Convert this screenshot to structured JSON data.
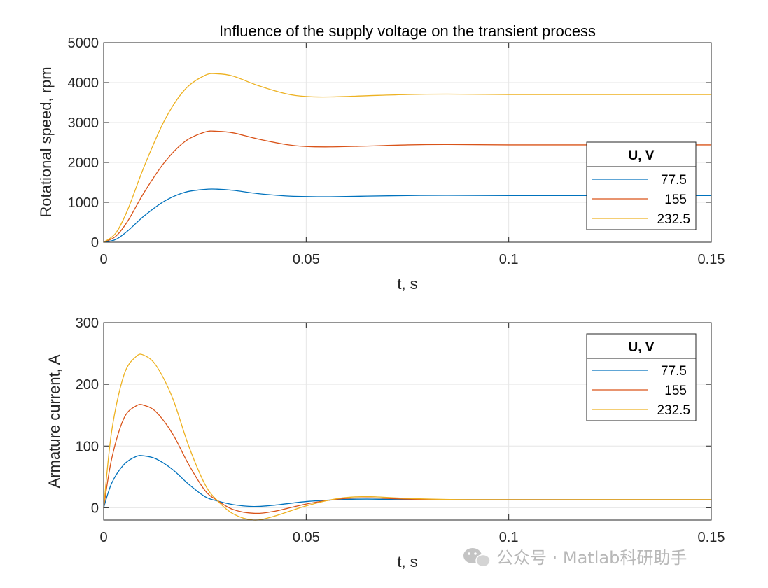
{
  "figure_title": "Influence of the supply voltage on the transient process",
  "watermark": "公众号 · Matlab科研助手",
  "chart_data": [
    {
      "type": "line",
      "title": "Influence of the supply voltage on the transient process",
      "xlabel": "t, s",
      "ylabel": "Rotational speed, rpm",
      "xlim": [
        0,
        0.15
      ],
      "ylim": [
        0,
        5000
      ],
      "xticks": [
        0,
        0.05,
        0.1,
        0.15
      ],
      "xtick_labels": [
        "0",
        "0.05",
        "0.1",
        "0.15"
      ],
      "yticks": [
        0,
        1000,
        2000,
        3000,
        4000,
        5000
      ],
      "ytick_labels": [
        "0",
        "1000",
        "2000",
        "3000",
        "4000",
        "5000"
      ],
      "grid": true,
      "legend": {
        "title": "U, V",
        "location": "right",
        "entries": [
          "77.5",
          "155",
          "232.5"
        ]
      },
      "series": [
        {
          "name": "77.5",
          "color": "#0072BD",
          "x": [
            0,
            0.003,
            0.006,
            0.01,
            0.015,
            0.02,
            0.025,
            0.028,
            0.032,
            0.038,
            0.045,
            0.05,
            0.056,
            0.065,
            0.075,
            0.085,
            0.1,
            0.12,
            0.15
          ],
          "y": [
            0,
            70,
            290,
            660,
            1030,
            1250,
            1325,
            1330,
            1300,
            1220,
            1160,
            1145,
            1140,
            1155,
            1170,
            1175,
            1170,
            1170,
            1170
          ]
        },
        {
          "name": "155",
          "color": "#D95319",
          "x": [
            0,
            0.003,
            0.006,
            0.01,
            0.015,
            0.02,
            0.025,
            0.028,
            0.032,
            0.038,
            0.045,
            0.05,
            0.056,
            0.065,
            0.075,
            0.085,
            0.1,
            0.12,
            0.15
          ],
          "y": [
            0,
            150,
            540,
            1250,
            2000,
            2520,
            2760,
            2780,
            2740,
            2590,
            2450,
            2400,
            2390,
            2410,
            2440,
            2450,
            2440,
            2440,
            2440
          ]
        },
        {
          "name": "232.5",
          "color": "#EDB120",
          "x": [
            0,
            0.003,
            0.006,
            0.01,
            0.015,
            0.02,
            0.025,
            0.028,
            0.032,
            0.038,
            0.045,
            0.05,
            0.056,
            0.065,
            0.075,
            0.085,
            0.1,
            0.12,
            0.15
          ],
          "y": [
            0,
            230,
            830,
            1900,
            3050,
            3820,
            4180,
            4220,
            4160,
            3930,
            3720,
            3650,
            3640,
            3670,
            3700,
            3710,
            3700,
            3700,
            3700
          ]
        }
      ]
    },
    {
      "type": "line",
      "title": "",
      "xlabel": "t, s",
      "ylabel": "Armature current, A",
      "xlim": [
        0,
        0.15
      ],
      "ylim": [
        -20,
        300
      ],
      "xticks": [
        0,
        0.05,
        0.1,
        0.15
      ],
      "xtick_labels": [
        "0",
        "0.05",
        "0.1",
        "0.15"
      ],
      "yticks": [
        0,
        100,
        200,
        300
      ],
      "ytick_labels": [
        "0",
        "100",
        "200",
        "300"
      ],
      "grid": true,
      "legend": {
        "title": "U, V",
        "location": "top-right",
        "entries": [
          "77.5",
          "155",
          "232.5"
        ]
      },
      "series": [
        {
          "name": "77.5",
          "color": "#0072BD",
          "x": [
            0,
            0.002,
            0.005,
            0.008,
            0.01,
            0.013,
            0.017,
            0.021,
            0.025,
            0.028,
            0.032,
            0.037,
            0.042,
            0.05,
            0.058,
            0.065,
            0.075,
            0.09,
            0.12,
            0.15
          ],
          "y": [
            0,
            40,
            70,
            83,
            84,
            79,
            62,
            38,
            18,
            11,
            5,
            2,
            4,
            10,
            13,
            14,
            13,
            13,
            13,
            13
          ]
        },
        {
          "name": "155",
          "color": "#D95319",
          "x": [
            0,
            0.002,
            0.005,
            0.008,
            0.01,
            0.013,
            0.017,
            0.021,
            0.025,
            0.028,
            0.032,
            0.037,
            0.042,
            0.05,
            0.058,
            0.065,
            0.075,
            0.09,
            0.12,
            0.15
          ],
          "y": [
            0,
            80,
            145,
            165,
            166,
            155,
            120,
            70,
            28,
            12,
            -3,
            -9,
            -6,
            6,
            14,
            16,
            14,
            13,
            13,
            13
          ]
        },
        {
          "name": "232.5",
          "color": "#EDB120",
          "x": [
            0,
            0.002,
            0.005,
            0.008,
            0.01,
            0.013,
            0.017,
            0.021,
            0.025,
            0.028,
            0.032,
            0.037,
            0.042,
            0.05,
            0.058,
            0.065,
            0.075,
            0.09,
            0.12,
            0.15
          ],
          "y": [
            0,
            125,
            215,
            245,
            247,
            230,
            178,
            100,
            38,
            12,
            -10,
            -20,
            -14,
            3,
            15,
            18,
            15,
            13,
            13,
            13
          ]
        }
      ]
    }
  ]
}
